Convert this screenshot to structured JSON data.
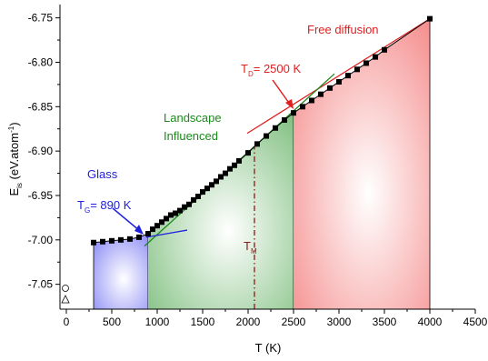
{
  "chart_data": {
    "type": "line",
    "x": [
      300,
      400,
      500,
      600,
      700,
      800,
      900,
      950,
      1000,
      1050,
      1100,
      1150,
      1200,
      1250,
      1300,
      1350,
      1400,
      1450,
      1500,
      1550,
      1600,
      1650,
      1700,
      1750,
      1800,
      1850,
      1900,
      2000,
      2100,
      2200,
      2300,
      2400,
      2500,
      2600,
      2700,
      2800,
      2900,
      3000,
      3100,
      3200,
      3300,
      3400,
      3500,
      4000
    ],
    "series": [
      {
        "color": "#000000",
        "values": [
          -7.003,
          -7.002,
          -7.001,
          -7.0,
          -6.999,
          -6.997,
          -6.993,
          -6.988,
          -6.984,
          -6.98,
          -6.976,
          -6.972,
          -6.97,
          -6.967,
          -6.963,
          -6.96,
          -6.955,
          -6.951,
          -6.946,
          -6.942,
          -6.938,
          -6.934,
          -6.929,
          -6.925,
          -6.92,
          -6.916,
          -6.911,
          -6.902,
          -6.892,
          -6.883,
          -6.874,
          -6.865,
          -6.857,
          -6.85,
          -6.843,
          -6.836,
          -6.829,
          -6.822,
          -6.815,
          -6.808,
          -6.801,
          -6.794,
          -6.786,
          -6.751
        ]
      }
    ],
    "xlabel": "T (K)",
    "ylabel": {
      "main": "E",
      "sub": "is",
      "mid": " (eV.atom",
      "sup": "-1",
      "end": ")"
    },
    "xlim": [
      -70,
      4500
    ],
    "ylim": [
      -7.078,
      -6.735
    ],
    "xticks": [
      0,
      500,
      1000,
      1500,
      2000,
      2500,
      3000,
      3500,
      4000,
      4500
    ],
    "yticks": [
      -7.05,
      {
        "value": -7.0,
        "label": "-7.00"
      },
      -6.95,
      {
        "value": -6.9,
        "label": "-6.90"
      },
      -6.85,
      {
        "value": -6.8,
        "label": "-6.80"
      },
      -6.75
    ],
    "regions": [
      {
        "from": 300,
        "to": 900,
        "color": "#8c8cf5"
      },
      {
        "from": 900,
        "to": 2500,
        "color": "#7fbf7f"
      },
      {
        "from": 2500,
        "to": 4000,
        "color": "#f58c8c"
      }
    ],
    "fit_lines": [
      {
        "color": "#e02020",
        "x": [
          1990,
          4000
        ],
        "y": [
          -6.88,
          -6.751
        ]
      },
      {
        "color": "#1a8a1a",
        "x": [
          860,
          2950
        ],
        "y": [
          -7.007,
          -6.813
        ]
      },
      {
        "color": "#2020e0",
        "x": [
          880,
          1330
        ],
        "y": [
          -6.997,
          -6.989
        ]
      }
    ],
    "tm_line": {
      "x": 2070,
      "color": "#8b1a1a"
    },
    "annotations": {
      "free": "Free diffusion",
      "td": {
        "main": "T",
        "sub": "D",
        "rest": "= 2500 K"
      },
      "landscape1": "Landscape",
      "landscape2": "Influenced",
      "glass": "Glass",
      "tg": {
        "main": "T",
        "sub": "G",
        "rest": "= 890 K"
      },
      "tm": {
        "main": "T",
        "sub": "M"
      }
    }
  }
}
